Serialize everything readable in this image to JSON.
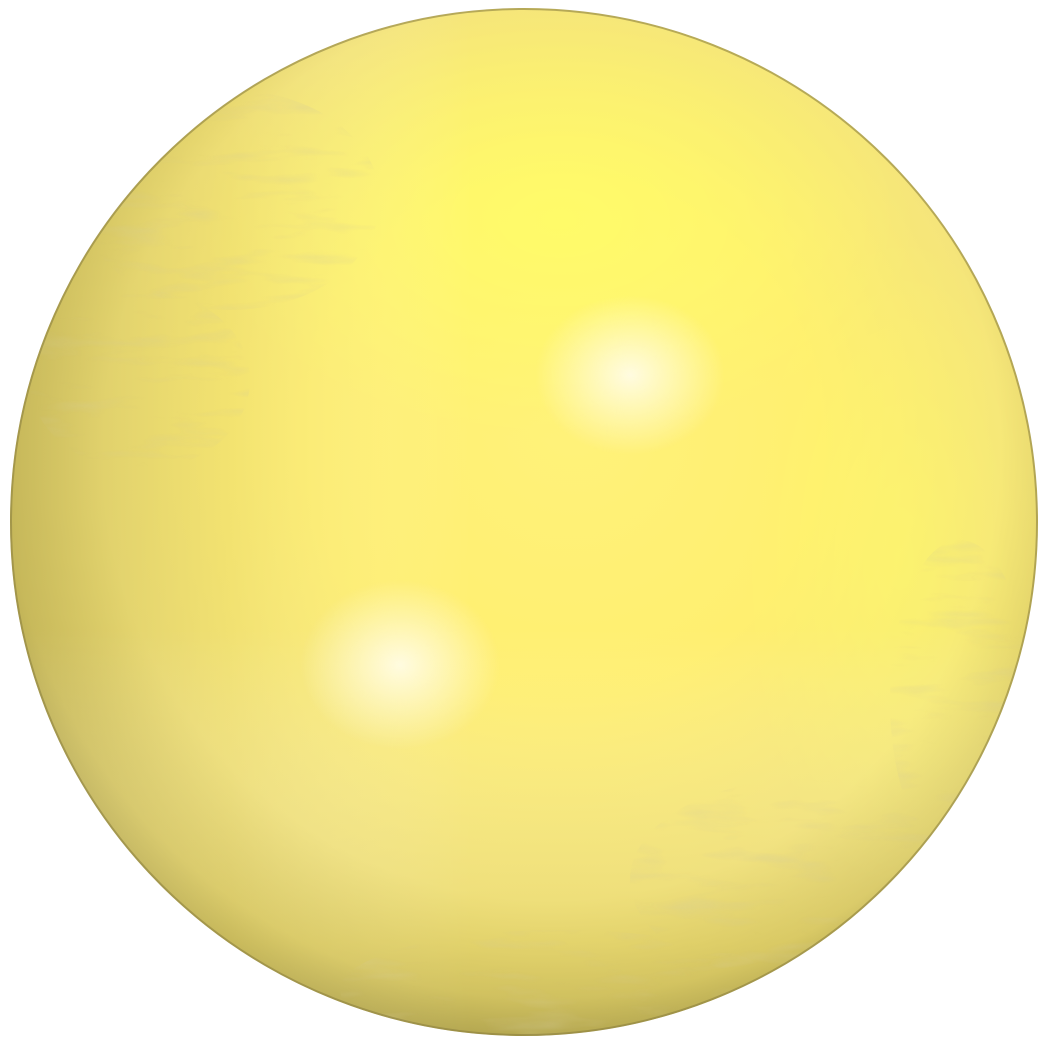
{
  "scene": {
    "subject": "sphere",
    "colors": {
      "background": "#ffffff",
      "base": "#fff27a",
      "bright": "#ffff66",
      "highlight": "#fffbe0",
      "midtone": "#f5e57a",
      "shadow": "#b3a650",
      "rim": "#8c8040",
      "texture": "#a89a52"
    }
  }
}
